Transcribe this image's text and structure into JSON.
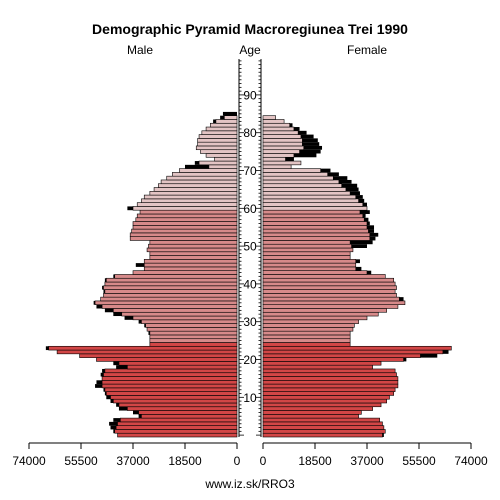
{
  "chart_data": {
    "type": "bar",
    "subtype": "population-pyramid",
    "title": "Demographic Pyramid Macroregiunea Trei 1990",
    "left_header": "Male",
    "center_header": "Age",
    "right_header": "Female",
    "footer": "www.iz.sk/RRO3",
    "x_ticks_left": [
      "74000",
      "55500",
      "37000",
      "18500",
      "0"
    ],
    "x_ticks_right": [
      "0",
      "18500",
      "37000",
      "55500",
      "74000"
    ],
    "x_tick_values": [
      0,
      18500,
      37000,
      55500,
      74000
    ],
    "xlim": [
      0,
      74000
    ],
    "age_ticks": [
      "10",
      "20",
      "30",
      "40",
      "50",
      "60",
      "70",
      "80",
      "90"
    ],
    "age_range": [
      0,
      99
    ],
    "colors": {
      "male_young": "#d24646",
      "male_mid": "#d78a8a",
      "male_old": "#e3c4c4",
      "female_young": "#d24646",
      "female_mid": "#d78a8a",
      "female_old": "#e3c4c4",
      "surplus": "#000000",
      "bar_stroke": "#000000",
      "axis": "#000000"
    },
    "ages": [
      0,
      1,
      2,
      3,
      4,
      5,
      6,
      7,
      8,
      9,
      10,
      11,
      12,
      13,
      14,
      15,
      16,
      17,
      18,
      19,
      20,
      21,
      22,
      23,
      24,
      25,
      26,
      27,
      28,
      29,
      30,
      31,
      32,
      33,
      34,
      35,
      36,
      37,
      38,
      39,
      40,
      41,
      42,
      43,
      44,
      45,
      46,
      47,
      48,
      49,
      50,
      51,
      52,
      53,
      54,
      55,
      56,
      57,
      58,
      59,
      60,
      61,
      62,
      63,
      64,
      65,
      66,
      67,
      68,
      69,
      70,
      71,
      72,
      73,
      74,
      75,
      76,
      77,
      78,
      79,
      80,
      81,
      82,
      83,
      84,
      85,
      86,
      87,
      88,
      89,
      90,
      91,
      92,
      93,
      94,
      95,
      96,
      97,
      98,
      99
    ],
    "series": [
      {
        "name": "Male",
        "values": [
          42500,
          44000,
          45000,
          45500,
          44000,
          35000,
          37000,
          42000,
          43000,
          45000,
          46500,
          47000,
          47500,
          50500,
          50000,
          48000,
          48500,
          48000,
          43000,
          44000,
          50000,
          56000,
          64000,
          68000,
          31000,
          31000,
          31000,
          31500,
          32000,
          33000,
          35000,
          40000,
          44000,
          47000,
          50000,
          51000,
          48500,
          47500,
          47500,
          48000,
          47000,
          47000,
          44000,
          37000,
          33000,
          36000,
          33000,
          31000,
          31000,
          32000,
          31500,
          31000,
          38000,
          38000,
          37500,
          37000,
          37000,
          36000,
          35500,
          34500,
          39000,
          35500,
          34000,
          33000,
          31000,
          29500,
          28000,
          27000,
          25000,
          23000,
          20500,
          18500,
          15000,
          8000,
          11000,
          13000,
          14500,
          14000,
          14000,
          13500,
          12500,
          11000,
          9500,
          8500,
          6000,
          5000,
          0,
          0,
          0,
          0,
          0,
          0,
          0,
          0,
          0,
          0,
          0,
          0,
          0,
          0
        ]
      },
      {
        "name": "Female",
        "values": [
          43000,
          43500,
          43000,
          42500,
          41500,
          34000,
          35000,
          39000,
          42000,
          44000,
          45000,
          46500,
          47000,
          48000,
          48000,
          48000,
          47500,
          47000,
          39000,
          42000,
          51000,
          62000,
          66000,
          67000,
          31000,
          31000,
          31000,
          31000,
          32000,
          32500,
          34000,
          37000,
          41000,
          44000,
          48000,
          50500,
          50000,
          47500,
          47000,
          47500,
          47000,
          46500,
          43500,
          38500,
          35000,
          33000,
          34500,
          31000,
          31000,
          32000,
          37000,
          39000,
          40000,
          41000,
          39500,
          39500,
          38000,
          37500,
          36500,
          38000,
          37000,
          37000,
          36000,
          35500,
          34500,
          34000,
          33500,
          31500,
          30000,
          27000,
          24000,
          10000,
          13500,
          11000,
          19000,
          20500,
          21000,
          20000,
          19500,
          18000,
          15500,
          13000,
          10500,
          7500,
          4500,
          0,
          0,
          0,
          0,
          0,
          0,
          0,
          0,
          0,
          0,
          0,
          0,
          0,
          0,
          0
        ]
      }
    ]
  }
}
